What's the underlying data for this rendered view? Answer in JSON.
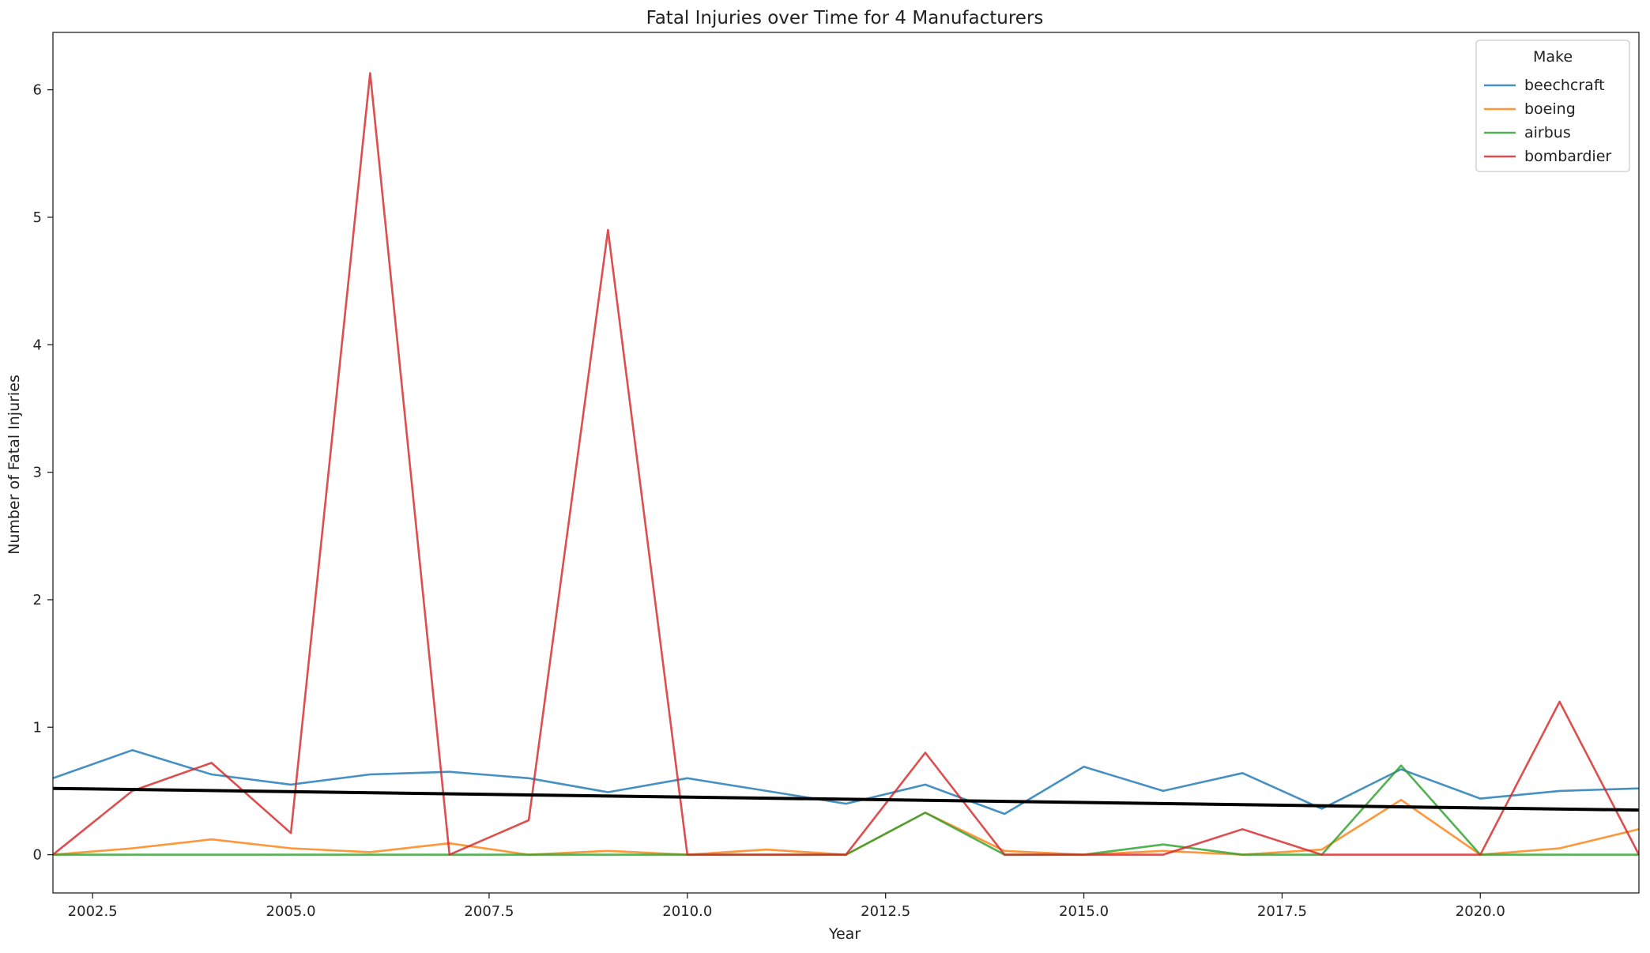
{
  "chart_data": {
    "type": "line",
    "title": "Fatal Injuries over Time for  4 Manufacturers",
    "xlabel": "Year",
    "ylabel": "Number of Fatal Injuries",
    "xlim": [
      2002,
      2022
    ],
    "ylim": [
      -0.3,
      6.45
    ],
    "xticks": [
      2002.5,
      2005.0,
      2007.5,
      2010.0,
      2012.5,
      2015.0,
      2017.5,
      2020.0
    ],
    "xtick_labels": [
      "2002.5",
      "2005.0",
      "2007.5",
      "2010.0",
      "2012.5",
      "2015.0",
      "2017.5",
      "2020.0"
    ],
    "yticks": [
      0,
      1,
      2,
      3,
      4,
      5,
      6
    ],
    "ytick_labels": [
      "0",
      "1",
      "2",
      "3",
      "4",
      "5",
      "6"
    ],
    "grid": false,
    "legend": {
      "title": "Make",
      "placement": "top-right"
    },
    "x": [
      2002,
      2003,
      2004,
      2005,
      2006,
      2007,
      2008,
      2009,
      2010,
      2011,
      2012,
      2013,
      2014,
      2015,
      2016,
      2017,
      2018,
      2019,
      2020,
      2021,
      2022
    ],
    "series": [
      {
        "name": "beechcraft",
        "color": "#1f77b4",
        "values": [
          0.6,
          0.82,
          0.63,
          0.55,
          0.63,
          0.65,
          0.6,
          0.49,
          0.6,
          0.5,
          0.4,
          0.55,
          0.32,
          0.69,
          0.5,
          0.64,
          0.36,
          0.67,
          0.44,
          0.5,
          0.52
        ]
      },
      {
        "name": "boeing",
        "color": "#ff7f0e",
        "values": [
          0.0,
          0.05,
          0.12,
          0.05,
          0.02,
          0.09,
          0.0,
          0.03,
          0.0,
          0.04,
          0.0,
          0.33,
          0.03,
          0.0,
          0.03,
          0.0,
          0.04,
          0.43,
          0.0,
          0.05,
          0.2
        ]
      },
      {
        "name": "airbus",
        "color": "#2ca02c",
        "values": [
          0.0,
          0.0,
          0.0,
          0.0,
          0.0,
          0.0,
          0.0,
          0.0,
          0.0,
          0.0,
          0.0,
          0.33,
          0.0,
          0.0,
          0.08,
          0.0,
          0.0,
          0.7,
          0.0,
          0.0,
          0.0
        ]
      },
      {
        "name": "bombardier",
        "color": "#d62728",
        "values": [
          0.0,
          0.5,
          0.72,
          0.17,
          6.13,
          0.0,
          0.27,
          4.9,
          0.0,
          0.0,
          0.0,
          0.8,
          0.0,
          0.0,
          0.0,
          0.2,
          0.0,
          0.0,
          0.0,
          1.2,
          0.0
        ]
      }
    ],
    "trendline": {
      "color": "#000000",
      "x": [
        2002,
        2022
      ],
      "y": [
        0.52,
        0.35
      ]
    }
  }
}
